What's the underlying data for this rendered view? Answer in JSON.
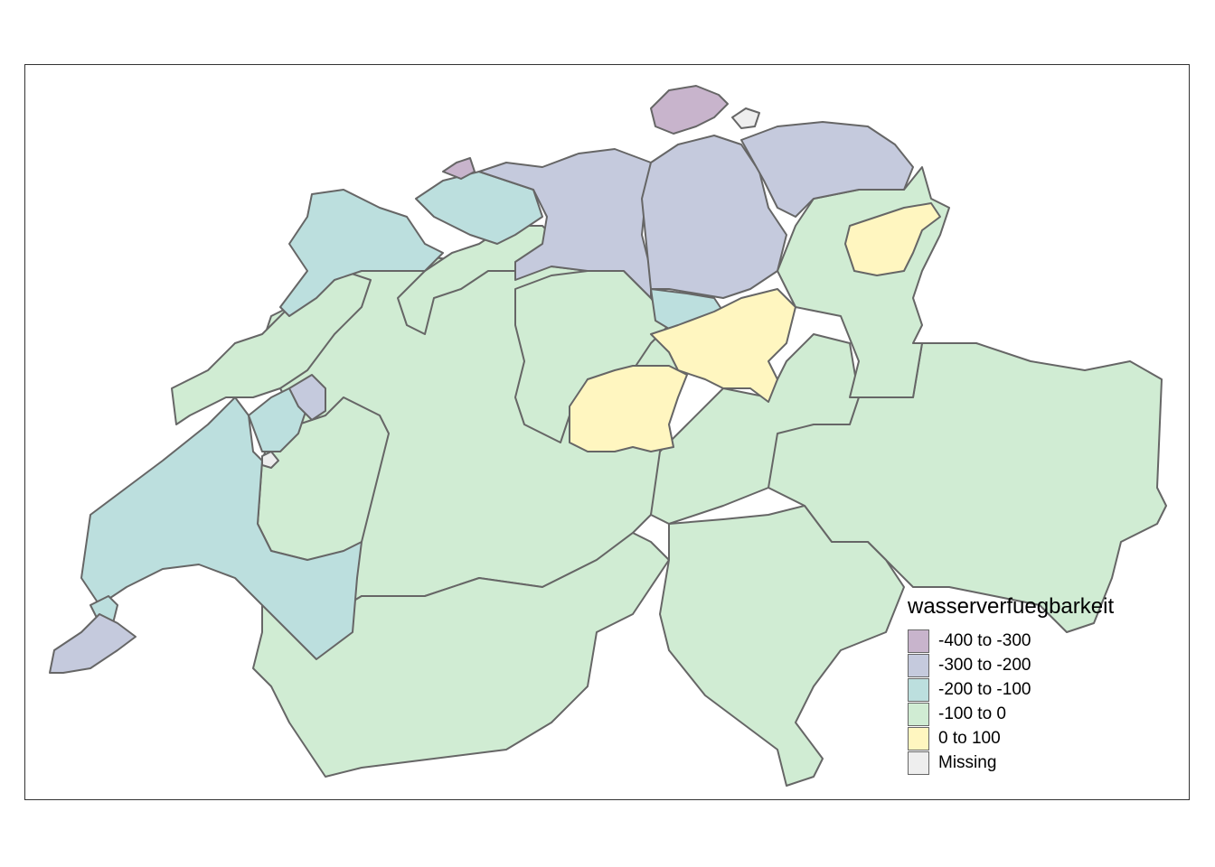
{
  "colors": {
    "class_m400_m300": "#c8b4cc",
    "class_m300_m200": "#c5cadd",
    "class_m200_m100": "#bcdfde",
    "class_m100_0": "#d0ecd3",
    "class_0_100": "#fff6c0",
    "missing": "#eeeeee",
    "border": "#666666"
  },
  "legend": {
    "title": "wasserverfuegbarkeit",
    "items": [
      {
        "label": "-400 to -300",
        "color": "#c8b4cc"
      },
      {
        "label": "-300 to -200",
        "color": "#c5cadd"
      },
      {
        "label": "-200 to -100",
        "color": "#bcdfde"
      },
      {
        "label": "-100 to 0",
        "color": "#d0ecd3"
      },
      {
        "label": "0 to 100",
        "color": "#fff6c0"
      },
      {
        "label": "Missing",
        "color": "#eeeeee"
      }
    ]
  }
}
